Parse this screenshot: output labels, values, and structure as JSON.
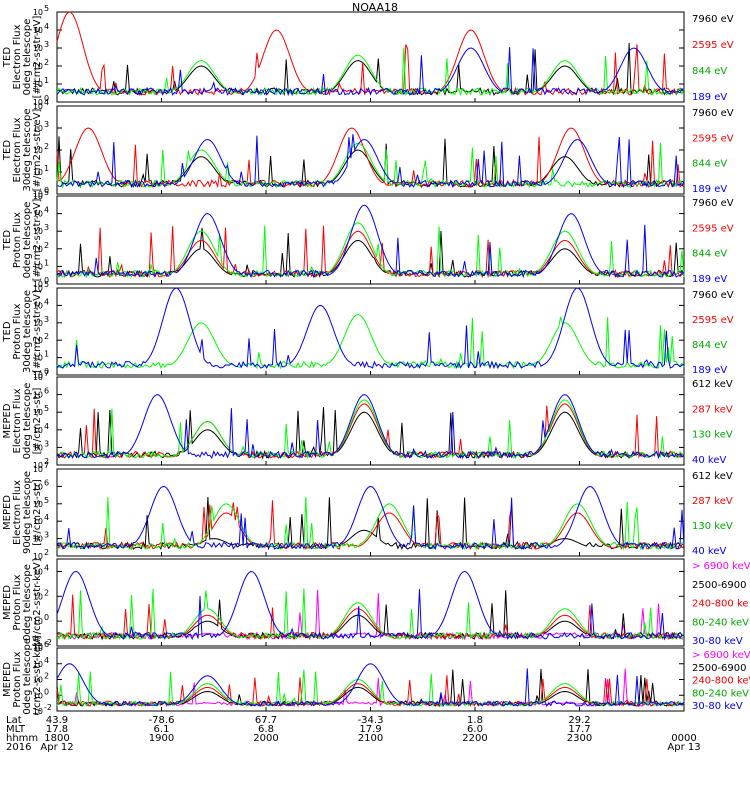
{
  "title": "NOAA18",
  "colors": {
    "blue": "#0000ff",
    "red": "#ff0000",
    "green": "#00ff00",
    "black": "#000000",
    "magenta": "#ff00ff"
  },
  "panels": [
    {
      "ylabel": [
        "TED",
        "Electron Flux",
        "0deg telescope",
        "[#/cm2-s-str-eV]"
      ],
      "ytick_exponents": [
        "0",
        "1",
        "2",
        "3",
        "4",
        "5"
      ],
      "legend": [
        {
          "label": "7960 eV",
          "color": "#000000"
        },
        {
          "label": "2595 eV",
          "color": "#ff0000"
        },
        {
          "label": "844 eV",
          "color": "#00aa00"
        },
        {
          "label": "189 eV",
          "color": "#0000ff"
        }
      ]
    },
    {
      "ylabel": [
        "TED",
        "Electron Flux",
        "30deg telescope",
        "[#/cm2-s-str-eV]"
      ],
      "ytick_exponents": [
        "0",
        "1",
        "2",
        "3",
        "4"
      ],
      "legend": [
        {
          "label": "7960 eV",
          "color": "#000000"
        },
        {
          "label": "2595 eV",
          "color": "#ff0000"
        },
        {
          "label": "844 eV",
          "color": "#00aa00"
        },
        {
          "label": "189 eV",
          "color": "#0000ff"
        }
      ]
    },
    {
      "ylabel": [
        "TED",
        "Proton Flux",
        "0deg telescope",
        "[#/cm2-s-str-eV]"
      ],
      "ytick_exponents": [
        "0",
        "1",
        "2",
        "3",
        "4",
        "5"
      ],
      "legend": [
        {
          "label": "7960 eV",
          "color": "#000000"
        },
        {
          "label": "2595 eV",
          "color": "#ff0000"
        },
        {
          "label": "844 eV",
          "color": "#00aa00"
        },
        {
          "label": "189 eV",
          "color": "#0000ff"
        }
      ]
    },
    {
      "ylabel": [
        "TED",
        "Proton Flux",
        "30deg telescope",
        "[#/cm2-s-str-eV]"
      ],
      "ytick_exponents": [
        "0",
        "1",
        "2",
        "3",
        "4",
        "5"
      ],
      "legend": [
        {
          "label": "7960 eV",
          "color": "#000000"
        },
        {
          "label": "2595 eV",
          "color": "#ff0000"
        },
        {
          "label": "844 eV",
          "color": "#00aa00"
        },
        {
          "label": "189 eV",
          "color": "#0000ff"
        }
      ]
    },
    {
      "ylabel": [
        "MEPED",
        "Electron Flux",
        "0deg telescope",
        "[#/cm2-s-str]"
      ],
      "ytick_exponents": [
        "2",
        "3",
        "4",
        "5",
        "6",
        "7"
      ],
      "legend": [
        {
          "label": "612 keV",
          "color": "#000000"
        },
        {
          "label": "287 keV",
          "color": "#ff0000"
        },
        {
          "label": "130 keV",
          "color": "#00aa00"
        },
        {
          "label": "40 keV",
          "color": "#0000ff"
        }
      ]
    },
    {
      "ylabel": [
        "MEPED",
        "Electron Flux",
        "90deg telescope",
        "[#/cm2-s-str]"
      ],
      "ytick_exponents": [
        "2",
        "3",
        "4",
        "5",
        "6",
        "7"
      ],
      "legend": [
        {
          "label": "612 keV",
          "color": "#000000"
        },
        {
          "label": "287 keV",
          "color": "#ff0000"
        },
        {
          "label": "130 keV",
          "color": "#00aa00"
        },
        {
          "label": "40 keV",
          "color": "#0000ff"
        }
      ]
    },
    {
      "ylabel": [
        "MEPED",
        "Proton Flux",
        "0deg telescope",
        "[#/cm2-s-str-keV]"
      ],
      "ytick_exponents": [
        "-2",
        "0",
        "2",
        "4"
      ],
      "legend": [
        {
          "label": "> 6900 keV",
          "color": "#ff00ff"
        },
        {
          "label": "2500-6900",
          "color": "#000000"
        },
        {
          "label": "240-800 ke",
          "color": "#ff0000"
        },
        {
          "label": "80-240 keV",
          "color": "#00aa00"
        },
        {
          "label": "30-80 keV",
          "color": "#0000ff"
        }
      ]
    },
    {
      "ylabel": [
        "MEPED",
        "Proton Flux",
        "90deg telescope",
        "[#/cm2-s-str-keV]"
      ],
      "ytick_exponents": [
        "-2",
        "0",
        "2",
        "4",
        "6"
      ],
      "legend": [
        {
          "label": "> 6900 keV",
          "color": "#ff00ff"
        },
        {
          "label": "2500-6900",
          "color": "#000000"
        },
        {
          "label": "240-800 keV",
          "color": "#ff0000"
        },
        {
          "label": "80-240 keV",
          "color": "#00aa00"
        },
        {
          "label": "30-80 keV",
          "color": "#0000ff"
        }
      ]
    }
  ],
  "footer": {
    "row_labels": [
      "Lat",
      "MLT",
      "hhmm",
      "2016"
    ],
    "columns": [
      {
        "lat": "43.9",
        "mlt": "17.8",
        "hhmm": "1800",
        "date": "Apr 12"
      },
      {
        "lat": "-78.6",
        "mlt": "6.1",
        "hhmm": "1900",
        "date": ""
      },
      {
        "lat": "67.7",
        "mlt": "6.8",
        "hhmm": "2000",
        "date": ""
      },
      {
        "lat": "-34.3",
        "mlt": "17.9",
        "hhmm": "2100",
        "date": ""
      },
      {
        "lat": "1.8",
        "mlt": "6.0",
        "hhmm": "2200",
        "date": ""
      },
      {
        "lat": "29.2",
        "mlt": "17.7",
        "hhmm": "2300",
        "date": ""
      },
      {
        "lat": "",
        "mlt": "",
        "hhmm": "0000",
        "date": "Apr 13"
      }
    ]
  },
  "chart_data": {
    "type": "line",
    "title": "NOAA18",
    "x_label": "hhmm",
    "x": [
      "1800",
      "1900",
      "2000",
      "2100",
      "2200",
      "2300",
      "0000"
    ],
    "y_scale": "log",
    "panels": [
      {
        "name": "TED Electron Flux 0deg telescope",
        "ylim": [
          1,
          100000
        ],
        "series": [
          {
            "name": "7960 eV",
            "peaks": [
              [
                0.23,
                100
              ],
              [
                0.48,
                200
              ],
              [
                0.81,
                100
              ]
            ]
          },
          {
            "name": "2595 eV",
            "peaks": [
              [
                0.02,
                100000
              ],
              [
                0.35,
                10000
              ],
              [
                0.66,
                10000
              ]
            ]
          },
          {
            "name": "844 eV",
            "peaks": [
              [
                0.23,
                200
              ],
              [
                0.48,
                400
              ],
              [
                0.81,
                200
              ]
            ]
          },
          {
            "name": "189 eV",
            "peaks": [
              [
                0.66,
                1000
              ],
              [
                0.92,
                1000
              ]
            ]
          }
        ]
      },
      {
        "name": "TED Electron Flux 30deg telescope",
        "ylim": [
          1,
          10000
        ],
        "series": [
          {
            "name": "7960 eV",
            "peaks": [
              [
                0.23,
                50
              ],
              [
                0.48,
                100
              ],
              [
                0.81,
                50
              ]
            ]
          },
          {
            "name": "2595 eV",
            "peaks": [
              [
                0.05,
                1000
              ],
              [
                0.47,
                1000
              ],
              [
                0.82,
                1000
              ]
            ]
          },
          {
            "name": "844 eV",
            "peaks": [
              [
                0.23,
                100
              ],
              [
                0.48,
                200
              ]
            ]
          },
          {
            "name": "189 eV",
            "peaks": [
              [
                0.24,
                300
              ],
              [
                0.49,
                300
              ],
              [
                0.83,
                300
              ]
            ]
          }
        ]
      },
      {
        "name": "TED Proton Flux 0deg telescope",
        "ylim": [
          1,
          100000
        ],
        "series": [
          {
            "name": "7960 eV",
            "peaks": [
              [
                0.23,
                100
              ],
              [
                0.48,
                300
              ],
              [
                0.81,
                100
              ]
            ]
          },
          {
            "name": "2595 eV",
            "peaks": [
              [
                0.23,
                300
              ],
              [
                0.48,
                1000
              ],
              [
                0.81,
                300
              ]
            ]
          },
          {
            "name": "844 eV",
            "peaks": [
              [
                0.23,
                1000
              ],
              [
                0.48,
                3000
              ],
              [
                0.81,
                1000
              ]
            ]
          },
          {
            "name": "189 eV",
            "peaks": [
              [
                0.24,
                10000
              ],
              [
                0.49,
                30000
              ],
              [
                0.82,
                10000
              ]
            ]
          }
        ]
      },
      {
        "name": "TED Proton Flux 30deg telescope",
        "ylim": [
          1,
          100000
        ],
        "series": [
          {
            "name": "844 eV",
            "peaks": [
              [
                0.23,
                1000
              ],
              [
                0.48,
                3000
              ],
              [
                0.81,
                1000
              ]
            ]
          },
          {
            "name": "189 eV",
            "peaks": [
              [
                0.19,
                100000
              ],
              [
                0.42,
                10000
              ],
              [
                0.83,
                100000
              ]
            ]
          }
        ]
      },
      {
        "name": "MEPED Electron Flux 0deg telescope",
        "ylim": [
          100,
          10000000
        ],
        "series": [
          {
            "name": "612 keV",
            "peaks": [
              [
                0.24,
                10000
              ],
              [
                0.49,
                100000
              ],
              [
                0.81,
                100000
              ]
            ]
          },
          {
            "name": "287 keV",
            "peaks": [
              [
                0.24,
                30000
              ],
              [
                0.49,
                300000
              ],
              [
                0.81,
                300000
              ]
            ]
          },
          {
            "name": "130 keV",
            "peaks": [
              [
                0.24,
                30000
              ],
              [
                0.49,
                500000
              ],
              [
                0.81,
                500000
              ]
            ]
          },
          {
            "name": "40 keV",
            "peaks": [
              [
                0.16,
                1000000
              ],
              [
                0.49,
                1000000
              ],
              [
                0.81,
                1000000
              ]
            ]
          }
        ]
      },
      {
        "name": "MEPED Electron Flux 90deg telescope",
        "ylim": [
          100,
          10000000
        ],
        "series": [
          {
            "name": "612 keV",
            "peaks": [
              [
                0.25,
                1000
              ],
              [
                0.49,
                3000
              ],
              [
                0.81,
                1000
              ]
            ]
          },
          {
            "name": "287 keV",
            "peaks": [
              [
                0.27,
                30000
              ],
              [
                0.53,
                30000
              ],
              [
                0.83,
                30000
              ]
            ]
          },
          {
            "name": "130 keV",
            "peaks": [
              [
                0.27,
                100000
              ],
              [
                0.53,
                100000
              ],
              [
                0.83,
                100000
              ]
            ]
          },
          {
            "name": "40 keV",
            "peaks": [
              [
                0.17,
                1000000
              ],
              [
                0.5,
                1000000
              ],
              [
                0.85,
                1000000
              ]
            ]
          }
        ]
      },
      {
        "name": "MEPED Proton Flux 0deg telescope",
        "ylim": [
          0.01,
          100000
        ],
        "series": [
          {
            "name": "> 6900 keV",
            "peaks": [
              [
                0.24,
                0.1
              ],
              [
                0.48,
                0.1
              ],
              [
                0.81,
                0.1
              ]
            ]
          },
          {
            "name": "2500-6900",
            "peaks": [
              [
                0.24,
                1
              ],
              [
                0.48,
                3
              ],
              [
                0.81,
                1
              ]
            ]
          },
          {
            "name": "240-800 ke",
            "peaks": [
              [
                0.24,
                3
              ],
              [
                0.48,
                10
              ],
              [
                0.81,
                3
              ]
            ]
          },
          {
            "name": "80-240 keV",
            "peaks": [
              [
                0.24,
                10
              ],
              [
                0.48,
                30
              ],
              [
                0.81,
                10
              ]
            ]
          },
          {
            "name": "30-80 keV",
            "peaks": [
              [
                0.03,
                10000
              ],
              [
                0.31,
                10000
              ],
              [
                0.65,
                10000
              ]
            ]
          }
        ]
      },
      {
        "name": "MEPED Proton Flux 90deg telescope",
        "ylim": [
          0.01,
          1000000
        ],
        "series": [
          {
            "name": "> 6900 keV",
            "peaks": [
              [
                0.24,
                0.1
              ],
              [
                0.48,
                0.1
              ],
              [
                0.81,
                0.1
              ]
            ]
          },
          {
            "name": "2500-6900",
            "peaks": [
              [
                0.24,
                3
              ],
              [
                0.48,
                10
              ],
              [
                0.81,
                3
              ]
            ]
          },
          {
            "name": "240-800 keV",
            "peaks": [
              [
                0.24,
                10
              ],
              [
                0.48,
                30
              ],
              [
                0.81,
                10
              ]
            ]
          },
          {
            "name": "80-240 keV",
            "peaks": [
              [
                0.24,
                30
              ],
              [
                0.48,
                100
              ],
              [
                0.81,
                30
              ]
            ]
          },
          {
            "name": "30-80 keV",
            "peaks": [
              [
                0.02,
                10000
              ],
              [
                0.24,
                300
              ],
              [
                0.5,
                10000
              ]
            ]
          }
        ]
      }
    ]
  }
}
